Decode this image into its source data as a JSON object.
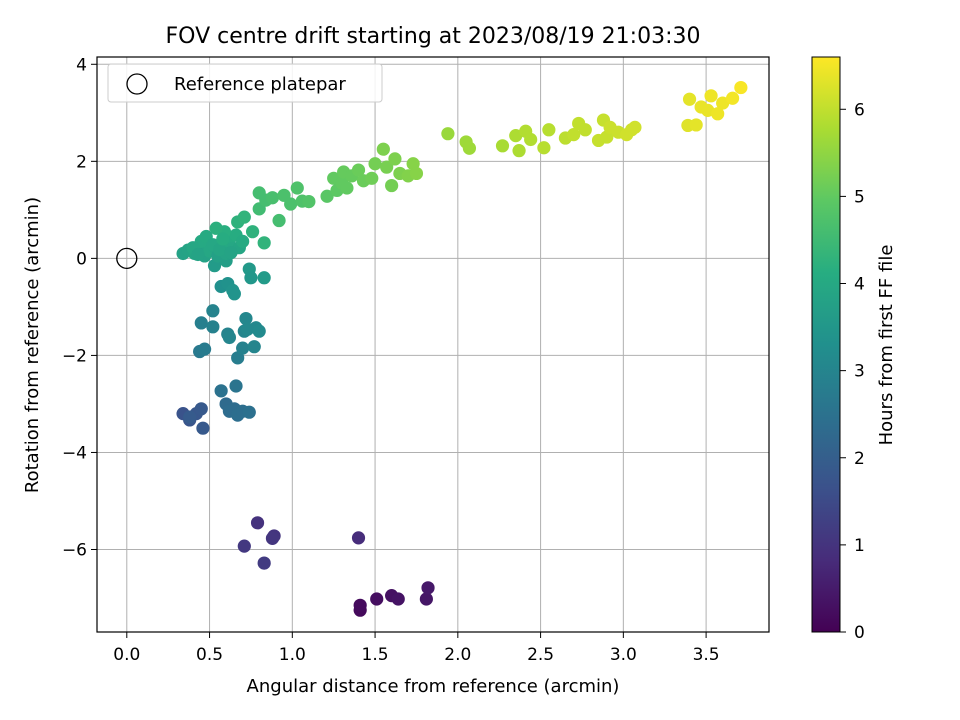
{
  "chart_data": {
    "type": "scatter",
    "title": "FOV centre drift starting at 2023/08/19 21:03:30",
    "xlabel": "Angular distance from reference (arcmin)",
    "ylabel": "Rotation from reference (arcmin)",
    "xlim": [
      -0.18,
      3.88
    ],
    "ylim": [
      -7.7,
      4.15
    ],
    "xticks": [
      "0.0",
      "0.5",
      "1.0",
      "1.5",
      "2.0",
      "2.5",
      "3.0",
      "3.5"
    ],
    "yticks": [
      "−6",
      "−4",
      "−2",
      "0",
      "2",
      "4"
    ],
    "grid": true,
    "legend": {
      "location": "upper-left",
      "label": "Reference platepar"
    },
    "reference_point": {
      "x": 0.0,
      "y": 0.0
    },
    "colorbar": {
      "label": "Hours from first FF file",
      "range": [
        0,
        6.6
      ],
      "ticks": [
        "0",
        "1",
        "2",
        "3",
        "4",
        "5",
        "6"
      ],
      "colormap": "viridis"
    },
    "points": [
      {
        "x": 1.41,
        "y": -7.25,
        "t": 0.15
      },
      {
        "x": 1.41,
        "y": -7.15,
        "t": 0.2
      },
      {
        "x": 1.51,
        "y": -7.02,
        "t": 0.25
      },
      {
        "x": 1.6,
        "y": -6.95,
        "t": 0.3
      },
      {
        "x": 1.64,
        "y": -7.02,
        "t": 0.35
      },
      {
        "x": 1.81,
        "y": -7.02,
        "t": 0.4
      },
      {
        "x": 1.82,
        "y": -6.79,
        "t": 0.45
      },
      {
        "x": 1.4,
        "y": -5.76,
        "t": 0.85
      },
      {
        "x": 0.79,
        "y": -5.45,
        "t": 0.95
      },
      {
        "x": 0.89,
        "y": -5.72,
        "t": 1.0
      },
      {
        "x": 0.88,
        "y": -5.77,
        "t": 1.05
      },
      {
        "x": 0.71,
        "y": -5.93,
        "t": 1.1
      },
      {
        "x": 0.83,
        "y": -6.28,
        "t": 1.15
      },
      {
        "x": 0.34,
        "y": -3.2,
        "t": 1.7
      },
      {
        "x": 0.38,
        "y": -3.33,
        "t": 1.75
      },
      {
        "x": 0.42,
        "y": -3.2,
        "t": 1.8
      },
      {
        "x": 0.45,
        "y": -3.1,
        "t": 1.85
      },
      {
        "x": 0.46,
        "y": -3.5,
        "t": 1.85
      },
      {
        "x": 0.38,
        "y": -3.27,
        "t": 1.9
      },
      {
        "x": 0.6,
        "y": -3.0,
        "t": 2.3
      },
      {
        "x": 0.62,
        "y": -3.15,
        "t": 2.35
      },
      {
        "x": 0.65,
        "y": -3.1,
        "t": 2.35
      },
      {
        "x": 0.67,
        "y": -3.23,
        "t": 2.4
      },
      {
        "x": 0.7,
        "y": -3.15,
        "t": 2.4
      },
      {
        "x": 0.74,
        "y": -3.17,
        "t": 2.45
      },
      {
        "x": 0.57,
        "y": -2.73,
        "t": 2.5
      },
      {
        "x": 0.66,
        "y": -2.63,
        "t": 2.55
      },
      {
        "x": 0.44,
        "y": -1.92,
        "t": 2.7
      },
      {
        "x": 0.47,
        "y": -1.87,
        "t": 2.75
      },
      {
        "x": 0.45,
        "y": -1.33,
        "t": 2.85
      },
      {
        "x": 0.52,
        "y": -1.41,
        "t": 2.9
      },
      {
        "x": 0.52,
        "y": -1.08,
        "t": 2.95
      },
      {
        "x": 0.61,
        "y": -1.56,
        "t": 2.95
      },
      {
        "x": 0.62,
        "y": -1.63,
        "t": 3.0
      },
      {
        "x": 0.67,
        "y": -2.05,
        "t": 2.8
      },
      {
        "x": 0.7,
        "y": -1.85,
        "t": 2.9
      },
      {
        "x": 0.71,
        "y": -1.5,
        "t": 3.0
      },
      {
        "x": 0.72,
        "y": -1.24,
        "t": 3.05
      },
      {
        "x": 0.73,
        "y": -1.46,
        "t": 3.1
      },
      {
        "x": 0.77,
        "y": -1.82,
        "t": 3.0
      },
      {
        "x": 0.78,
        "y": -1.43,
        "t": 3.1
      },
      {
        "x": 0.8,
        "y": -1.5,
        "t": 3.15
      },
      {
        "x": 0.57,
        "y": -0.58,
        "t": 3.3
      },
      {
        "x": 0.61,
        "y": -0.52,
        "t": 3.35
      },
      {
        "x": 0.64,
        "y": -0.66,
        "t": 3.4
      },
      {
        "x": 0.65,
        "y": -0.73,
        "t": 3.4
      },
      {
        "x": 0.74,
        "y": -0.22,
        "t": 3.55
      },
      {
        "x": 0.75,
        "y": -0.4,
        "t": 3.5
      },
      {
        "x": 0.83,
        "y": -0.4,
        "t": 3.6
      },
      {
        "x": 0.53,
        "y": -0.15,
        "t": 3.6
      },
      {
        "x": 0.6,
        "y": -0.05,
        "t": 3.7
      },
      {
        "x": 0.34,
        "y": 0.1,
        "t": 3.8
      },
      {
        "x": 0.37,
        "y": 0.17,
        "t": 3.85
      },
      {
        "x": 0.41,
        "y": 0.1,
        "t": 3.9
      },
      {
        "x": 0.45,
        "y": 0.2,
        "t": 3.85
      },
      {
        "x": 0.47,
        "y": 0.05,
        "t": 3.8
      },
      {
        "x": 0.5,
        "y": 0.15,
        "t": 3.95
      },
      {
        "x": 0.53,
        "y": 0.25,
        "t": 3.9
      },
      {
        "x": 0.55,
        "y": 0.05,
        "t": 3.75
      },
      {
        "x": 0.57,
        "y": 0.3,
        "t": 4.0
      },
      {
        "x": 0.6,
        "y": 0.1,
        "t": 3.85
      },
      {
        "x": 0.62,
        "y": 0.38,
        "t": 4.05
      },
      {
        "x": 0.64,
        "y": 0.2,
        "t": 3.95
      },
      {
        "x": 0.66,
        "y": 0.48,
        "t": 4.1
      },
      {
        "x": 0.68,
        "y": 0.22,
        "t": 3.9
      },
      {
        "x": 0.7,
        "y": 0.35,
        "t": 4.05
      },
      {
        "x": 0.45,
        "y": 0.35,
        "t": 4.0
      },
      {
        "x": 0.48,
        "y": 0.45,
        "t": 4.05
      },
      {
        "x": 0.52,
        "y": 0.28,
        "t": 3.95
      },
      {
        "x": 0.59,
        "y": 0.55,
        "t": 4.15
      },
      {
        "x": 0.54,
        "y": 0.62,
        "t": 4.2
      },
      {
        "x": 0.67,
        "y": 0.75,
        "t": 4.25
      },
      {
        "x": 0.71,
        "y": 0.85,
        "t": 4.3
      },
      {
        "x": 0.76,
        "y": 0.55,
        "t": 4.25
      },
      {
        "x": 0.83,
        "y": 0.32,
        "t": 4.3
      },
      {
        "x": 0.4,
        "y": 0.22,
        "t": 3.95
      },
      {
        "x": 0.43,
        "y": 0.08,
        "t": 3.85
      },
      {
        "x": 0.56,
        "y": 0.18,
        "t": 3.9
      },
      {
        "x": 0.63,
        "y": 0.12,
        "t": 3.85
      },
      {
        "x": 0.58,
        "y": 0.4,
        "t": 4.1
      },
      {
        "x": 0.8,
        "y": 1.02,
        "t": 4.55
      },
      {
        "x": 0.8,
        "y": 1.35,
        "t": 4.6
      },
      {
        "x": 0.84,
        "y": 1.2,
        "t": 4.6
      },
      {
        "x": 0.88,
        "y": 1.25,
        "t": 4.65
      },
      {
        "x": 0.92,
        "y": 0.78,
        "t": 4.6
      },
      {
        "x": 0.95,
        "y": 1.3,
        "t": 4.7
      },
      {
        "x": 0.99,
        "y": 1.12,
        "t": 4.7
      },
      {
        "x": 1.03,
        "y": 1.45,
        "t": 4.75
      },
      {
        "x": 1.06,
        "y": 1.18,
        "t": 4.75
      },
      {
        "x": 1.1,
        "y": 1.17,
        "t": 4.8
      },
      {
        "x": 1.21,
        "y": 1.28,
        "t": 4.9
      },
      {
        "x": 1.25,
        "y": 1.65,
        "t": 5.0
      },
      {
        "x": 1.27,
        "y": 1.4,
        "t": 4.95
      },
      {
        "x": 1.3,
        "y": 1.55,
        "t": 5.0
      },
      {
        "x": 1.31,
        "y": 1.78,
        "t": 5.05
      },
      {
        "x": 1.33,
        "y": 1.45,
        "t": 5.0
      },
      {
        "x": 1.36,
        "y": 1.7,
        "t": 5.05
      },
      {
        "x": 1.4,
        "y": 1.82,
        "t": 5.1
      },
      {
        "x": 1.43,
        "y": 1.6,
        "t": 5.1
      },
      {
        "x": 1.48,
        "y": 1.65,
        "t": 5.15
      },
      {
        "x": 1.5,
        "y": 1.95,
        "t": 5.2
      },
      {
        "x": 1.55,
        "y": 2.25,
        "t": 5.3
      },
      {
        "x": 1.57,
        "y": 1.88,
        "t": 5.25
      },
      {
        "x": 1.6,
        "y": 1.5,
        "t": 5.2
      },
      {
        "x": 1.62,
        "y": 2.05,
        "t": 5.3
      },
      {
        "x": 1.65,
        "y": 1.75,
        "t": 5.3
      },
      {
        "x": 1.7,
        "y": 1.7,
        "t": 5.35
      },
      {
        "x": 1.73,
        "y": 1.95,
        "t": 5.4
      },
      {
        "x": 1.75,
        "y": 1.75,
        "t": 5.4
      },
      {
        "x": 1.94,
        "y": 2.57,
        "t": 5.6
      },
      {
        "x": 2.05,
        "y": 2.4,
        "t": 5.65
      },
      {
        "x": 2.07,
        "y": 2.27,
        "t": 5.65
      },
      {
        "x": 2.27,
        "y": 2.32,
        "t": 5.75
      },
      {
        "x": 2.35,
        "y": 2.53,
        "t": 5.8
      },
      {
        "x": 2.37,
        "y": 2.22,
        "t": 5.8
      },
      {
        "x": 2.41,
        "y": 2.62,
        "t": 5.85
      },
      {
        "x": 2.44,
        "y": 2.45,
        "t": 5.85
      },
      {
        "x": 2.52,
        "y": 2.28,
        "t": 5.9
      },
      {
        "x": 2.55,
        "y": 2.65,
        "t": 5.9
      },
      {
        "x": 2.65,
        "y": 2.48,
        "t": 5.95
      },
      {
        "x": 2.7,
        "y": 2.55,
        "t": 6.0
      },
      {
        "x": 2.73,
        "y": 2.78,
        "t": 6.0
      },
      {
        "x": 2.77,
        "y": 2.65,
        "t": 6.0
      },
      {
        "x": 2.85,
        "y": 2.43,
        "t": 6.05
      },
      {
        "x": 2.88,
        "y": 2.85,
        "t": 6.05
      },
      {
        "x": 2.9,
        "y": 2.5,
        "t": 6.05
      },
      {
        "x": 2.92,
        "y": 2.7,
        "t": 6.1
      },
      {
        "x": 2.97,
        "y": 2.6,
        "t": 6.1
      },
      {
        "x": 3.02,
        "y": 2.55,
        "t": 6.15
      },
      {
        "x": 3.05,
        "y": 2.65,
        "t": 6.15
      },
      {
        "x": 3.07,
        "y": 2.7,
        "t": 6.15
      },
      {
        "x": 3.39,
        "y": 2.74,
        "t": 6.3
      },
      {
        "x": 3.4,
        "y": 3.28,
        "t": 6.35
      },
      {
        "x": 3.44,
        "y": 2.75,
        "t": 6.35
      },
      {
        "x": 3.47,
        "y": 3.12,
        "t": 6.4
      },
      {
        "x": 3.51,
        "y": 3.05,
        "t": 6.4
      },
      {
        "x": 3.53,
        "y": 3.35,
        "t": 6.45
      },
      {
        "x": 3.57,
        "y": 2.98,
        "t": 6.45
      },
      {
        "x": 3.6,
        "y": 3.2,
        "t": 6.45
      },
      {
        "x": 3.66,
        "y": 3.3,
        "t": 6.5
      },
      {
        "x": 3.71,
        "y": 3.52,
        "t": 6.55
      }
    ]
  }
}
